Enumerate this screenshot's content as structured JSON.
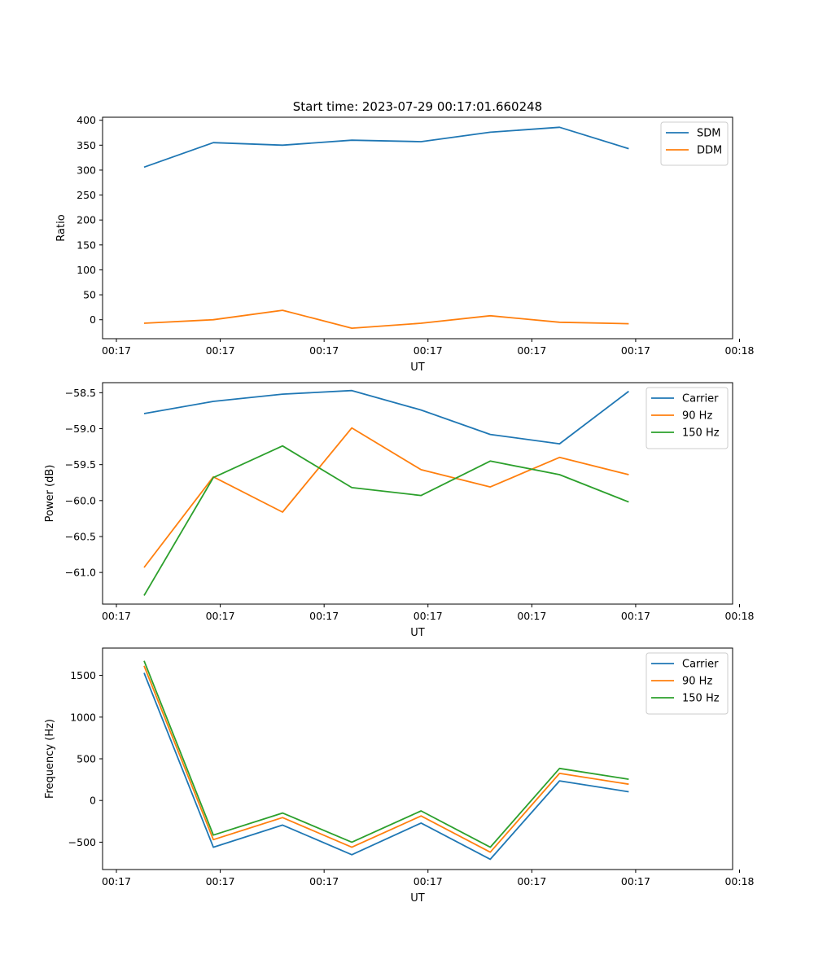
{
  "figure_title": "Start time: 2023-07-29 00:17:01.660248",
  "chart_data": [
    {
      "type": "line",
      "name": "ratio",
      "xlabel": "UT",
      "ylabel": "Ratio",
      "xlim": [
        -0.6,
        8.5
      ],
      "ylim": [
        -38,
        406
      ],
      "x_ticks": [
        -0.4,
        1.1,
        2.6,
        4.1,
        5.6,
        7.1,
        8.6
      ],
      "x_tick_labels": [
        "00:17",
        "00:17",
        "00:17",
        "00:17",
        "00:17",
        "00:17",
        "00:18"
      ],
      "y_ticks": [
        0,
        50,
        100,
        150,
        200,
        250,
        300,
        350,
        400
      ],
      "y_tick_labels": [
        "0",
        "50",
        "100",
        "150",
        "200",
        "250",
        "300",
        "350",
        "400"
      ],
      "x": [
        0,
        1,
        2,
        3,
        4,
        5,
        6,
        7
      ],
      "legend": "top-right",
      "series": [
        {
          "name": "SDM",
          "color": "#1f77b4",
          "values": [
            306,
            355,
            350,
            360,
            357,
            376,
            386,
            343
          ]
        },
        {
          "name": "DDM",
          "color": "#ff7f0e",
          "values": [
            -7,
            0,
            19,
            -17,
            -7,
            8,
            -5,
            -8
          ]
        }
      ]
    },
    {
      "type": "line",
      "name": "power",
      "xlabel": "UT",
      "ylabel": "Power (dB)",
      "xlim": [
        -0.6,
        8.5
      ],
      "ylim": [
        -61.44,
        -58.36
      ],
      "x_ticks": [
        -0.4,
        1.1,
        2.6,
        4.1,
        5.6,
        7.1,
        8.6
      ],
      "x_tick_labels": [
        "00:17",
        "00:17",
        "00:17",
        "00:17",
        "00:17",
        "00:17",
        "00:18"
      ],
      "y_ticks": [
        -61.0,
        -60.5,
        -60.0,
        -59.5,
        -59.0,
        -58.5
      ],
      "y_tick_labels": [
        "−61.0",
        "−60.5",
        "−60.0",
        "−59.5",
        "−59.0",
        "−58.5"
      ],
      "x": [
        0,
        1,
        2,
        3,
        4,
        5,
        6,
        7
      ],
      "legend": "top-right",
      "series": [
        {
          "name": "Carrier",
          "color": "#1f77b4",
          "values": [
            -58.79,
            -58.62,
            -58.52,
            -58.47,
            -58.74,
            -59.08,
            -59.21,
            -58.48
          ]
        },
        {
          "name": "90 Hz",
          "color": "#ff7f0e",
          "values": [
            -60.93,
            -59.67,
            -60.16,
            -58.99,
            -59.57,
            -59.81,
            -59.4,
            -59.64
          ]
        },
        {
          "name": "150 Hz",
          "color": "#2ca02c",
          "values": [
            -61.32,
            -59.68,
            -59.24,
            -59.82,
            -59.93,
            -59.45,
            -59.64,
            -60.02
          ]
        }
      ]
    },
    {
      "type": "line",
      "name": "frequency",
      "xlabel": "UT",
      "ylabel": "Frequency (Hz)",
      "xlim": [
        -0.6,
        8.5
      ],
      "ylim": [
        -828,
        1828
      ],
      "x_ticks": [
        -0.4,
        1.1,
        2.6,
        4.1,
        5.6,
        7.1,
        8.6
      ],
      "x_tick_labels": [
        "00:17",
        "00:17",
        "00:17",
        "00:17",
        "00:17",
        "00:17",
        "00:18"
      ],
      "y_ticks": [
        -500,
        0,
        500,
        1000,
        1500
      ],
      "y_tick_labels": [
        "−500",
        "0",
        "500",
        "1000",
        "1500"
      ],
      "x": [
        0,
        1,
        2,
        3,
        4,
        5,
        6,
        7
      ],
      "legend": "top-right",
      "series": [
        {
          "name": "Carrier",
          "color": "#1f77b4",
          "values": [
            1530,
            -560,
            -295,
            -650,
            -270,
            -705,
            235,
            105
          ]
        },
        {
          "name": "90 Hz",
          "color": "#ff7f0e",
          "values": [
            1615,
            -470,
            -205,
            -560,
            -185,
            -620,
            325,
            195
          ]
        },
        {
          "name": "150 Hz",
          "color": "#2ca02c",
          "values": [
            1675,
            -415,
            -150,
            -500,
            -125,
            -560,
            385,
            255
          ]
        }
      ]
    }
  ]
}
